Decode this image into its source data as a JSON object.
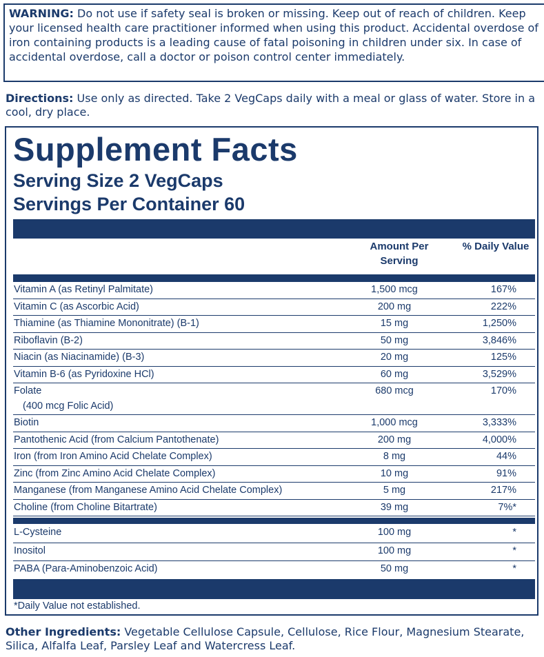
{
  "warning": {
    "label": "WARNING:",
    "text": "Do not use if safety seal is broken or missing. Keep out of reach of children. Keep your licensed health care practitioner informed when using this product. Accidental overdose of iron containing products is a leading cause of fatal poisoning in children under six. In case of accidental overdose, call a doctor or poison control center immediately."
  },
  "directions": {
    "label": "Directions:",
    "text": "Use only as directed. Take 2 VegCaps daily with a meal or glass of water. Store in a cool, dry place."
  },
  "facts": {
    "title": "Supplement Facts",
    "serving_size": "Serving Size 2 VegCaps",
    "servings_per_container": "Servings Per Container 60",
    "header": {
      "amount": "Amount Per Serving",
      "daily_value": "% Daily Value"
    },
    "rows": [
      {
        "name": "Vitamin A (as Retinyl Palmitate)",
        "amount": "1,500 mcg",
        "dv": "167%"
      },
      {
        "name": "Vitamin C (as Ascorbic Acid)",
        "amount": "200 mg",
        "dv": "222%"
      },
      {
        "name": "Thiamine (as Thiamine Mononitrate) (B-1)",
        "amount": "15 mg",
        "dv": "1,250%"
      },
      {
        "name": "Riboflavin (B-2)",
        "amount": "50 mg",
        "dv": "3,846%"
      },
      {
        "name": "Niacin (as Niacinamide) (B-3)",
        "amount": "20 mg",
        "dv": "125%"
      },
      {
        "name": "Vitamin B-6 (as Pyridoxine HCl)",
        "amount": "60 mg",
        "dv": "3,529%"
      },
      {
        "name": "Folate",
        "sub": "(400 mcg Folic Acid)",
        "amount": "680 mcg",
        "dv": "170%"
      },
      {
        "name": "Biotin",
        "amount": "1,000 mcg",
        "dv": "3,333%"
      },
      {
        "name": "Pantothenic Acid (from Calcium Pantothenate)",
        "amount": "200 mg",
        "dv": "4,000%"
      },
      {
        "name": "Iron (from Iron Amino Acid Chelate Complex)",
        "amount": "8 mg",
        "dv": "44%"
      },
      {
        "name": "Zinc (from Zinc Amino Acid Chelate Complex)",
        "amount": "10 mg",
        "dv": "91%"
      },
      {
        "name": "Manganese (from Manganese Amino Acid Chelate Complex)",
        "amount": "5 mg",
        "dv": "217%"
      },
      {
        "name": "Choline (from Choline Bitartrate)",
        "amount": "39 mg",
        "dv": "7%*"
      }
    ],
    "other_rows": [
      {
        "name": "L-Cysteine",
        "amount": "100 mg",
        "dv": "*"
      },
      {
        "name": "Inositol",
        "amount": "100 mg",
        "dv": "*"
      },
      {
        "name": "PABA (Para-Aminobenzoic Acid)",
        "amount": "50 mg",
        "dv": "*"
      }
    ],
    "footnote": "*Daily Value not established."
  },
  "other_ingredients": {
    "label": "Other Ingredients:",
    "text": "Vegetable Cellulose Capsule, Cellulose, Rice Flour, Magnesium Stearate, Silica, Alfalfa Leaf, Parsley Leaf and Watercress Leaf."
  }
}
